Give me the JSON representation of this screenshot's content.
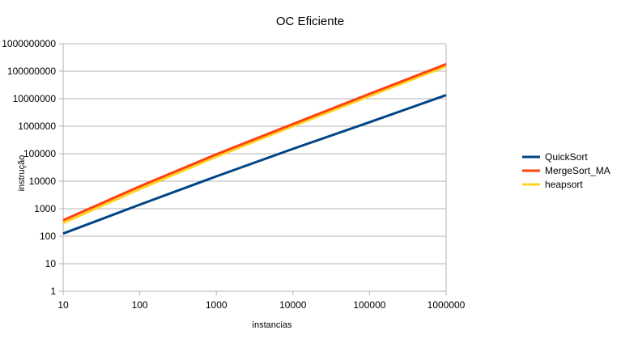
{
  "chart_data": {
    "type": "line",
    "title": "OC Eficiente",
    "xlabel": "instancias",
    "ylabel": "instrução",
    "x_scale": "log",
    "y_scale": "log",
    "xlim": [
      10,
      1000000
    ],
    "ylim": [
      1,
      1000000000
    ],
    "x_ticks": [
      "10",
      "100",
      "1000",
      "10000",
      "100000",
      "1000000"
    ],
    "y_ticks": [
      "1",
      "10",
      "100",
      "1000",
      "10000",
      "100000",
      "1000000",
      "10000000",
      "100000000",
      "1000000000"
    ],
    "grid": true,
    "legend_position": "right",
    "x": [
      10,
      100,
      1000,
      10000,
      100000,
      1000000
    ],
    "series": [
      {
        "name": "QuickSort",
        "color": "#004586",
        "values": [
          125,
          1400,
          15000,
          150000,
          1400000,
          13500000
        ]
      },
      {
        "name": "MergeSort_MA",
        "color": "#ff420e",
        "values": [
          380,
          6500,
          95000,
          1200000,
          15000000,
          180000000
        ]
      },
      {
        "name": "heapsort",
        "color": "#ffd320",
        "values": [
          300,
          5200,
          78000,
          1000000,
          12500000,
          150000000
        ]
      }
    ]
  }
}
